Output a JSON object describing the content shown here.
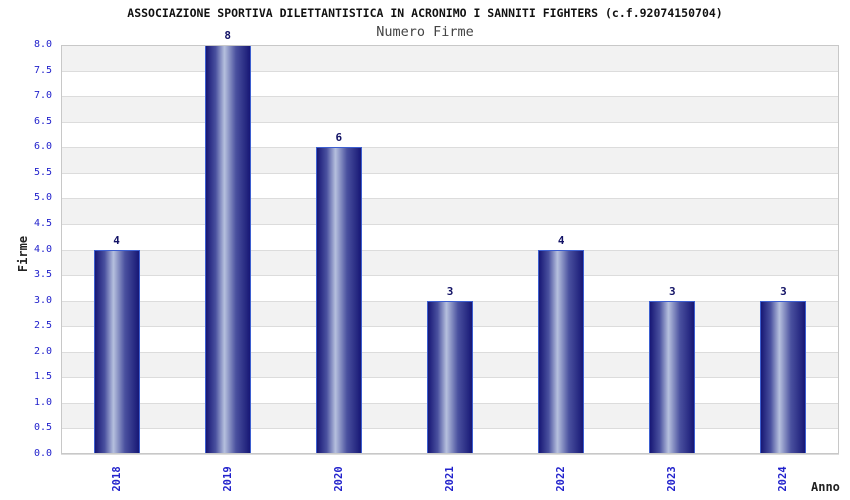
{
  "chart_data": {
    "type": "bar",
    "title": "ASSOCIAZIONE SPORTIVA DILETTANTISTICA IN ACRONIMO I SANNITI FIGHTERS (c.f.92074150704)",
    "subtitle": "Numero Firme",
    "xlabel": "Anno",
    "ylabel": "Firme",
    "categories": [
      "2018",
      "2019",
      "2020",
      "2021",
      "2022",
      "2023",
      "2024"
    ],
    "values": [
      4,
      8,
      6,
      3,
      4,
      3,
      3
    ],
    "ylim": [
      0,
      8
    ],
    "ytick_step": 0.5,
    "grid": "horizontal-bands",
    "legend": "none",
    "colors": {
      "bar_dark": "#171775",
      "bar_mid": "#4a519f",
      "bar_light": "#b6c0de",
      "bar_border": "#3d5fd0",
      "tick_label": "#2222cc",
      "value_label": "#131366",
      "band_gray": "#f2f2f2",
      "band_white": "#ffffff",
      "gridline": "#dcdcdc",
      "plot_border": "#c8c8c8",
      "title_color": "#111111",
      "subtitle_color": "#444444",
      "axis_title_color": "#222222"
    }
  }
}
